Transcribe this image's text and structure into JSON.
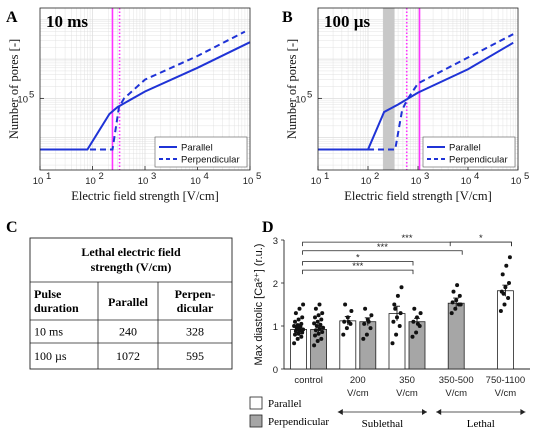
{
  "panel_labels": {
    "a": "A",
    "b": "B",
    "c": "C",
    "d": "D"
  },
  "colors": {
    "line": "#1f33d6",
    "marker": "#ff33ff",
    "band": "#c8c8c8",
    "bar_parallel": "#ffffff",
    "bar_perpendicular": "#a6a6a6",
    "grid": "#dcdcdc"
  },
  "chart_data": [
    {
      "type": "line",
      "panel": "A",
      "title": "10 ms",
      "xlabel": "Electric field strength [V/cm]",
      "ylabel": "Number of pores [-]",
      "xscale": "log",
      "yscale": "log",
      "xlim": [
        10,
        100000
      ],
      "ylim": [
        1500,
        20000000
      ],
      "x_tick_labels": [
        "10",
        "10",
        "10",
        "10",
        "10"
      ],
      "x_tick_exponents": [
        "1",
        "2",
        "3",
        "4",
        "5"
      ],
      "y_tick_labels": [
        "10"
      ],
      "y_tick_exponents": [
        "5"
      ],
      "grid": true,
      "legend_position": "bottom-right",
      "series": [
        {
          "name": "Parallel",
          "style": "solid",
          "x": [
            10,
            80,
            210,
            300,
            1000,
            10000,
            100000
          ],
          "y": [
            5000,
            5000,
            40000,
            60000,
            150000,
            600000,
            2700000
          ]
        },
        {
          "name": "Perpendicular",
          "style": "dashed",
          "x": [
            10,
            240,
            320,
            400,
            1000,
            10000,
            80000
          ],
          "y": [
            5000,
            5000,
            60000,
            100000,
            300000,
            1200000,
            5000000
          ]
        }
      ],
      "markers": [
        {
          "x": 240,
          "style": "solid"
        },
        {
          "x": 328,
          "style": "dotted"
        }
      ]
    },
    {
      "type": "line",
      "panel": "B",
      "title": "100 µs",
      "xlabel": "Electric field strength [V/cm]",
      "ylabel": "Number of pores [-]",
      "xscale": "log",
      "yscale": "log",
      "xlim": [
        10,
        100000
      ],
      "ylim": [
        1500,
        20000000
      ],
      "x_tick_labels": [
        "10",
        "10",
        "10",
        "10",
        "10"
      ],
      "x_tick_exponents": [
        "1",
        "2",
        "3",
        "4",
        "5"
      ],
      "y_tick_labels": [
        "10"
      ],
      "y_tick_exponents": [
        "5"
      ],
      "grid": true,
      "legend_position": "bottom-right",
      "series": [
        {
          "name": "Parallel",
          "style": "solid",
          "x": [
            10,
            100,
            210,
            400,
            1000,
            10000,
            80000
          ],
          "y": [
            5000,
            5000,
            45000,
            70000,
            140000,
            550000,
            2600000
          ]
        },
        {
          "name": "Perpendicular",
          "style": "dashed",
          "x": [
            10,
            350,
            480,
            600,
            1000,
            10000,
            80000
          ],
          "y": [
            5000,
            5000,
            50000,
            90000,
            240000,
            1100000,
            4300000
          ]
        }
      ],
      "shaded_x_range": [
        200,
        340
      ],
      "markers": [
        {
          "x": 1072,
          "style": "solid"
        },
        {
          "x": 595,
          "style": "dotted"
        }
      ]
    },
    {
      "type": "table",
      "panel": "C",
      "title": "Lethal electric field strength (V/cm)",
      "columns": [
        "Pulse duration",
        "Parallel",
        "Perpen-dicular"
      ],
      "rows": [
        [
          "10 ms",
          "240",
          "328"
        ],
        [
          "100 µs",
          "1072",
          "595"
        ]
      ]
    },
    {
      "type": "bar",
      "panel": "D",
      "ylabel": "Max diastolic [Ca²⁺] (r.u.)",
      "ylim": [
        0,
        3
      ],
      "y_ticks": [
        "0",
        "1",
        "2",
        "3"
      ],
      "categories": [
        "control",
        "200 V/cm",
        "350 V/cm",
        "350-500 V/cm",
        "750-1100 V/cm"
      ],
      "groups": [
        {
          "label": "Sublethal",
          "categories": [
            "200 V/cm",
            "350 V/cm"
          ]
        },
        {
          "label": "Lethal",
          "categories": [
            "350-500 V/cm",
            "750-1100 V/cm"
          ]
        }
      ],
      "series": [
        {
          "name": "Parallel",
          "values": [
            0.92,
            1.12,
            1.29,
            null,
            1.82
          ],
          "errors": [
            0.06,
            0.1,
            0.17,
            null,
            0.13
          ]
        },
        {
          "name": "Perpendicular",
          "values": [
            0.92,
            1.1,
            1.1,
            1.53,
            null
          ],
          "errors": [
            0.06,
            0.09,
            0.08,
            0.12,
            null
          ]
        }
      ],
      "points": {
        "parallel": [
          [
            0.6,
            0.7,
            0.75,
            0.8,
            0.82,
            0.85,
            0.88,
            0.9,
            0.92,
            0.95,
            0.98,
            1.0,
            1.02,
            1.05,
            1.1,
            1.15,
            1.2,
            1.3,
            1.4,
            1.5
          ],
          [
            0.8,
            0.95,
            1.05,
            1.1,
            1.2,
            1.35,
            1.5,
            1.1
          ],
          [
            0.6,
            0.8,
            1.0,
            1.1,
            1.2,
            1.3,
            1.5,
            1.7,
            1.9,
            1.4
          ],
          [],
          [
            1.35,
            1.5,
            1.65,
            1.8,
            1.9,
            2.0,
            2.2,
            2.4,
            2.6,
            1.75
          ]
        ],
        "perpendicular": [
          [
            0.55,
            0.65,
            0.7,
            0.78,
            0.82,
            0.86,
            0.9,
            0.93,
            0.96,
            1.0,
            1.03,
            1.06,
            1.1,
            1.15,
            1.2,
            1.25,
            1.3,
            1.4,
            1.5
          ],
          [
            0.7,
            0.8,
            0.95,
            1.05,
            1.15,
            1.25,
            1.4,
            1.1
          ],
          [
            0.75,
            0.85,
            1.0,
            1.1,
            1.2,
            1.3,
            1.4,
            1.05
          ],
          [
            1.3,
            1.4,
            1.5,
            1.55,
            1.6,
            1.7,
            1.8,
            1.95,
            1.5
          ],
          []
        ]
      },
      "significance": [
        {
          "label": "***",
          "from": 0,
          "to": 4
        },
        {
          "label": "***",
          "from": 0,
          "to": 3
        },
        {
          "label": "*",
          "from": 0,
          "to": 2
        },
        {
          "label": "***",
          "from": 0,
          "to": 2
        },
        {
          "label": "*",
          "from": 3,
          "to": 4
        }
      ],
      "legend": [
        "Parallel",
        "Perpendicular"
      ],
      "group_labels": [
        "Sublethal",
        "Lethal"
      ]
    }
  ]
}
